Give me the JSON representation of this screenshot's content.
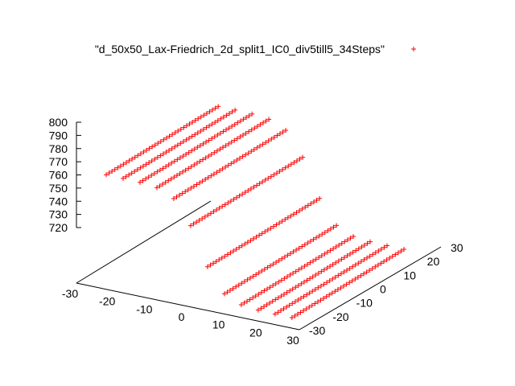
{
  "chart_data": {
    "type": "scatter",
    "series": [
      {
        "name": "\"d_50x50_Lax-Friedrich_2d_split1_IC0_div5till5_34Steps\"",
        "color": "#ff0000",
        "marker": "+"
      }
    ],
    "xlim": [
      -30,
      30
    ],
    "ylim": [
      -30,
      30
    ],
    "zlim": [
      720,
      800
    ],
    "x_ticks": [
      "-30",
      "-20",
      "-10",
      "0",
      "10",
      "20",
      "30"
    ],
    "y_ticks": [
      "-30",
      "-20",
      "-10",
      "0",
      "10",
      "20",
      "30"
    ],
    "z_ticks": [
      "720",
      "730",
      "740",
      "750",
      "760",
      "770",
      "780",
      "790",
      "800"
    ],
    "surface": {
      "description_free_params": true,
      "x_range": [
        -25,
        25
      ],
      "y_range": [
        -25,
        25
      ],
      "z_low": 721,
      "z_high": 800,
      "transition_center_x": 0,
      "transition_width": 12,
      "sampled_rows": 12,
      "points_per_row": 40
    },
    "legend_position": "top-right",
    "grid": false
  }
}
